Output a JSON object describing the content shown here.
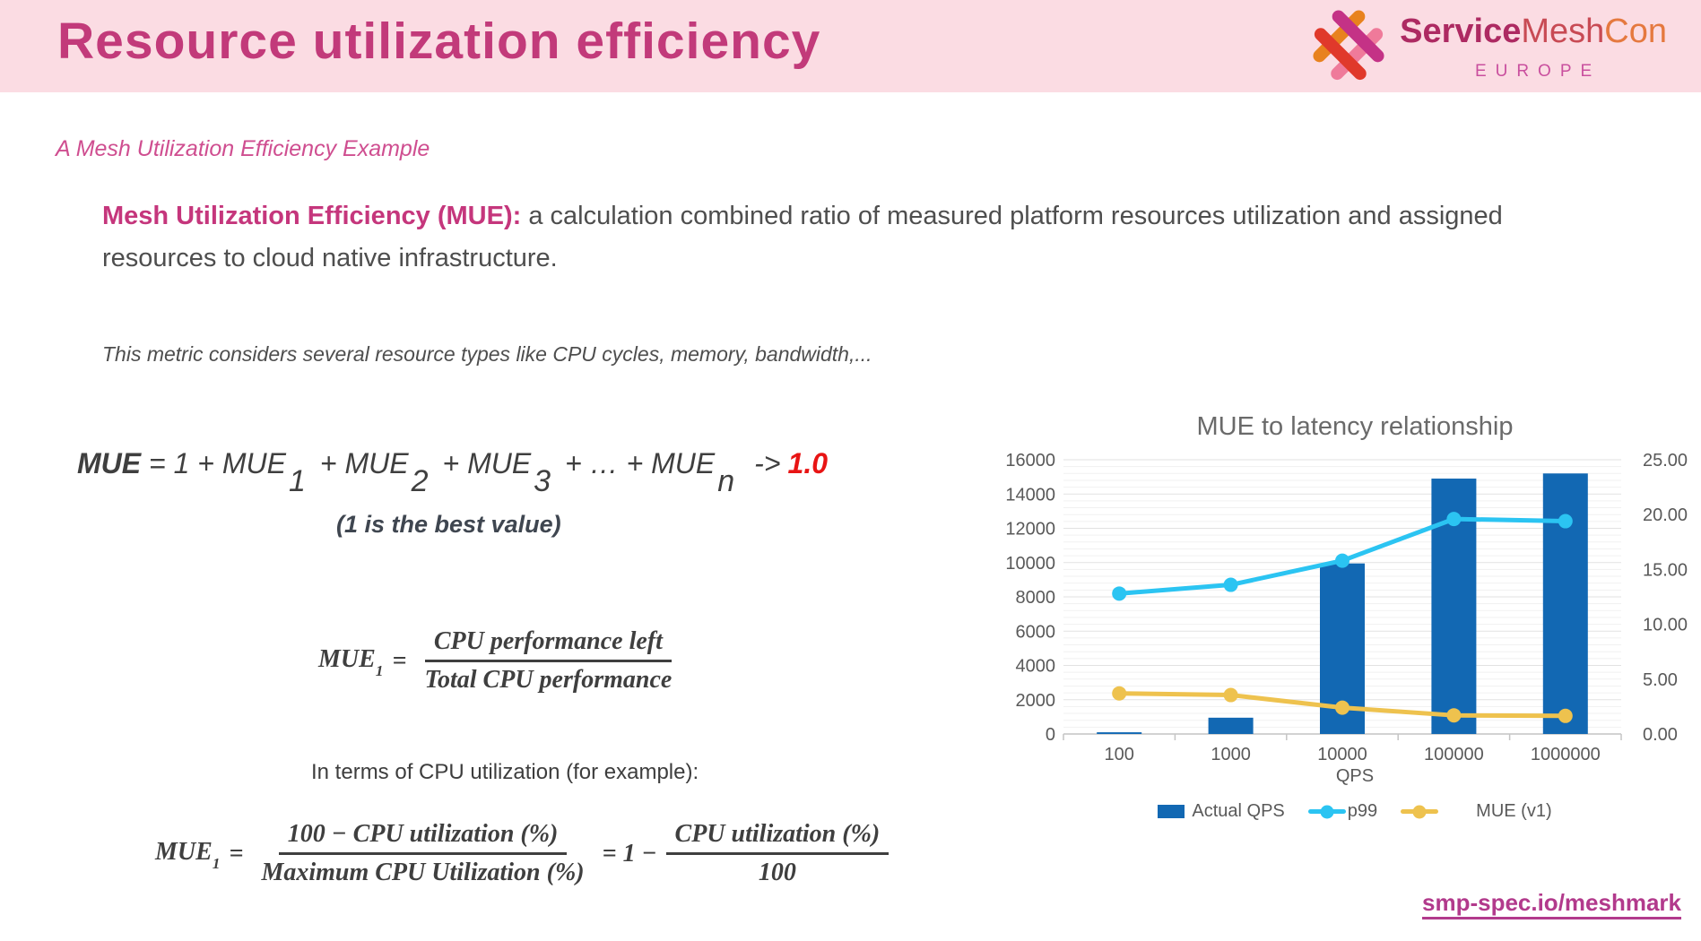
{
  "theme": {
    "page-bg": "#ffffff",
    "header-bg": "#fbdce3",
    "title-color": "#c23a7a",
    "subtitle-color": "#cf4e90",
    "accent-pink": "#c5367c",
    "body-gray": "#4e4e4e",
    "formula-gray": "#3f3f3f",
    "red-highlight": "#e81414",
    "link-color": "#b23a8c",
    "chart-title-color": "#6a6a6a",
    "chart-text": "#595959",
    "grid-minor": "#f1f1f1",
    "grid-major": "#e2e2e2",
    "axis-line": "#c4c4c4",
    "logo-service": "#ad2a62",
    "logo-mesh": "#c84a54",
    "logo-con": "#e5793f",
    "logo-region": "#c94f9e",
    "logo-icon-orange": "#e8821e",
    "logo-icon-pink": "#ef7a9a",
    "logo-icon-magenta": "#c43286",
    "logo-icon-red": "#e0392b"
  },
  "header": {
    "title": "Resource utilization efficiency",
    "logo": {
      "service": "Service",
      "mesh": "Mesh",
      "con": "Con",
      "region": "EUROPE"
    }
  },
  "subtitle": "A Mesh Utilization Efficiency Example",
  "paragraph": {
    "lead": "Mesh Utilization Efficiency (MUE):",
    "rest": " a calculation combined ratio of measured platform resources utilization and assigned resources to cloud native infrastructure."
  },
  "note": "This metric considers several resource types like CPU cycles, memory, bandwidth,...",
  "formula1": {
    "lead": "MUE",
    "seg1": " = 1 + MUE",
    "sub1": "1",
    "seg2": "+ MUE",
    "sub2": "2",
    "seg3": "+ MUE",
    "sub3": "3",
    "seg4": "+ … + MUE",
    "subn": "n",
    "arrow": "->",
    "target": "1.0",
    "caption": "(1 is the best value)"
  },
  "formula2": {
    "lhs": "MUE",
    "lhs_sub": "1",
    "eq": "=",
    "num": "CPU performance left",
    "den": "Total CPU performance"
  },
  "interms": "In terms of CPU utilization (for example):",
  "formula3": {
    "lhs": "MUE",
    "lhs_sub": "1",
    "eq": "=",
    "num1": "100 − CPU utilization (%)",
    "den1": "Maximum CPU Utilization (%)",
    "mid": "= 1 −",
    "num2": "CPU utilization (%)",
    "den2": "100"
  },
  "chart_data": {
    "type": "combo",
    "title": "MUE to latency relationship",
    "xlabel": "QPS",
    "categories": [
      "100",
      "1000",
      "10000",
      "100000",
      "1000000"
    ],
    "left_axis": {
      "min": 0,
      "max": 16000,
      "step": 2000,
      "minor_step": 400
    },
    "right_axis": {
      "min": 0,
      "max": 25,
      "step": 5,
      "decimals": 2
    },
    "grid": true,
    "legend_position": "bottom",
    "series": [
      {
        "name": "Actual QPS",
        "type": "bar",
        "axis": "left",
        "color": "#1268b3",
        "values": [
          100,
          950,
          9950,
          14900,
          15200
        ]
      },
      {
        "name": "p99",
        "type": "line",
        "axis": "right",
        "color": "#2bc4f2",
        "values": [
          12.8,
          13.6,
          15.8,
          19.6,
          19.4
        ]
      },
      {
        "name": "MUE (v1)",
        "type": "line",
        "axis": "right",
        "color": "#eec24e",
        "values": [
          3.7,
          3.55,
          2.4,
          1.7,
          1.65
        ]
      }
    ]
  },
  "footer": {
    "link": "smp-spec.io/meshmark"
  }
}
